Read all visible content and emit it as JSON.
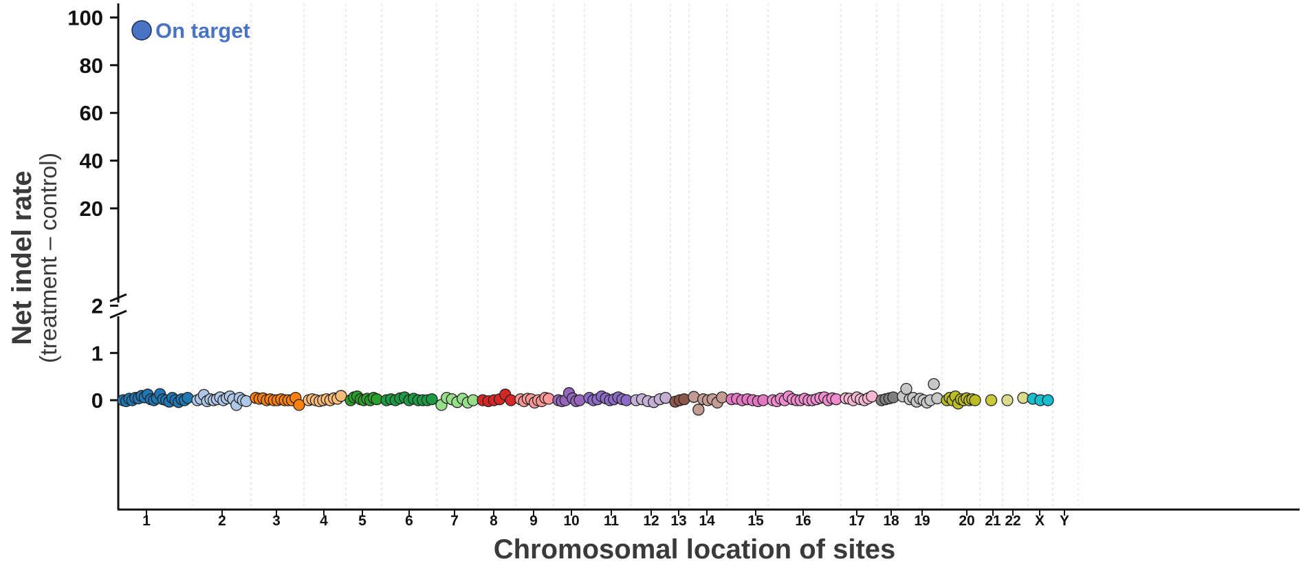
{
  "chart_data": {
    "type": "scatter",
    "xlabel": "Chromosomal location of sites",
    "ylabel": "Net indel rate",
    "ylabel_sub": "(treatment – control)",
    "y_upper": {
      "range": [
        5,
        105
      ],
      "ticks": [
        "20",
        "40",
        "60",
        "80",
        "100"
      ]
    },
    "y_lower": {
      "range": [
        -0.3,
        2.8
      ],
      "ticks": [
        "0",
        "1",
        "2"
      ]
    },
    "y_axis_break": true,
    "grid": "vertical dashed lines between chromosomes",
    "annotation": {
      "text": "On target",
      "value": 94.6,
      "chromosome": "1",
      "color": "#4a74c3"
    },
    "categories": [
      "1",
      "2",
      "3",
      "4",
      "5",
      "6",
      "7",
      "8",
      "9",
      "10",
      "11",
      "12",
      "13",
      "14",
      "15",
      "16",
      "17",
      "18",
      "19",
      "20",
      "21",
      "22",
      "X",
      "Y"
    ],
    "series": [
      {
        "chromosome": "1",
        "color": "#1f77b4",
        "values": [
          0.0,
          -0.02,
          0.03,
          0.0,
          0.05,
          0.04,
          0.09,
          0.06,
          0.12,
          0.02,
          0.0,
          0.04,
          0.13,
          0.02,
          0.0,
          -0.03,
          0.05,
          0.0,
          -0.04,
          0.02,
          0.0,
          0.05
        ]
      },
      {
        "chromosome": "2",
        "color": "#aec7e8",
        "values": [
          0.0,
          0.03,
          0.11,
          -0.02,
          0.02,
          0.0,
          0.02,
          0.06,
          0.0,
          0.04,
          0.08,
          0.02,
          -0.1,
          0.05,
          0.0,
          -0.02
        ]
      },
      {
        "chromosome": "3",
        "color": "#ff7f0e",
        "values": [
          0.05,
          0.03,
          0.04,
          0.0,
          0.02,
          0.0,
          0.0,
          0.02,
          0.0,
          0.0,
          0.0,
          0.05,
          -0.1
        ]
      },
      {
        "chromosome": "4",
        "color": "#ffbb78",
        "values": [
          0.0,
          0.02,
          0.0,
          -0.02,
          0.0,
          0.02,
          0.0,
          0.04,
          0.03,
          0.09
        ]
      },
      {
        "chromosome": "5",
        "color": "#2ca02c",
        "values": [
          0.0,
          0.06,
          0.08,
          0.02,
          0.0,
          0.03,
          0.0,
          0.05,
          0.02
        ]
      },
      {
        "chromosome": "6",
        "color": "#1e9a45",
        "values": [
          0.0,
          0.02,
          0.0,
          0.04,
          0.06,
          0.0,
          0.03,
          0.0,
          0.0,
          0.0,
          0.02
        ]
      },
      {
        "chromosome": "7",
        "color": "#98df8a",
        "values": [
          -0.1,
          0.05,
          0.02,
          -0.04,
          0.03,
          -0.05,
          0.0
        ]
      },
      {
        "chromosome": "8",
        "color": "#d62728",
        "values": [
          0.0,
          -0.02,
          0.0,
          0.02,
          0.12,
          0.0
        ]
      },
      {
        "chromosome": "9",
        "color": "#ff9896",
        "values": [
          0.02,
          -0.02,
          0.03,
          0.02,
          -0.05,
          0.0,
          -0.02,
          0.05,
          0.03
        ]
      },
      {
        "chromosome": "10",
        "color": "#9467bd",
        "values": [
          0.0,
          -0.02,
          0.0,
          0.15,
          0.04,
          -0.02,
          0.0
        ]
      },
      {
        "chromosome": "11",
        "color": "#8c6bc7",
        "values": [
          0.05,
          0.0,
          0.02,
          0.08,
          0.04,
          0.0,
          0.02,
          0.06,
          0.02,
          0.0
        ]
      },
      {
        "chromosome": "12",
        "color": "#c5b0d5",
        "values": [
          0.0,
          0.02,
          -0.02,
          -0.04,
          0.02,
          0.05
        ]
      },
      {
        "chromosome": "13",
        "color": "#8c564b",
        "values": [
          -0.03,
          0.0,
          0.02
        ]
      },
      {
        "chromosome": "14",
        "color": "#c49c94",
        "values": [
          0.07,
          -0.2,
          0.02,
          0.0,
          0.02,
          -0.05,
          0.06
        ]
      },
      {
        "chromosome": "15",
        "color": "#e377c2",
        "values": [
          0.02,
          0.03,
          0.0,
          0.02,
          0.0,
          -0.02,
          0.0
        ]
      },
      {
        "chromosome": "16",
        "color": "#f08bcf",
        "values": [
          0.0,
          -0.02,
          0.03,
          0.0,
          0.08,
          0.02,
          0.0,
          0.0,
          0.03,
          0.0,
          0.0,
          0.02,
          0.05,
          0.06,
          0.0,
          0.04,
          0.02
        ]
      },
      {
        "chromosome": "17",
        "color": "#f7b6d2",
        "values": [
          0.04,
          0.03,
          0.0,
          0.06,
          0.02,
          0.0,
          0.04,
          0.08
        ]
      },
      {
        "chromosome": "18",
        "color": "#7f7f7f",
        "values": [
          0.0,
          0.02,
          0.04,
          0.06
        ]
      },
      {
        "chromosome": "19",
        "color": "#c7c7c7",
        "values": [
          0.08,
          0.24,
          0.02,
          0.05,
          -0.03,
          0.03,
          0.0,
          -0.05,
          0.0,
          0.34,
          0.04
        ]
      },
      {
        "chromosome": "20",
        "color": "#bcbd22",
        "values": [
          0.0,
          0.05,
          0.0,
          0.08,
          -0.07,
          0.02,
          0.0,
          0.04,
          0.0,
          0.02,
          0.0
        ]
      },
      {
        "chromosome": "21",
        "color": "#c9c93b",
        "values": [
          0.0
        ]
      },
      {
        "chromosome": "22",
        "color": "#dbdb8d",
        "values": [
          0.0,
          0.05
        ]
      },
      {
        "chromosome": "X",
        "color": "#17becf",
        "values": [
          0.03,
          0.0,
          0.0
        ]
      },
      {
        "chromosome": "Y",
        "color": "#9edae5",
        "values": []
      }
    ]
  }
}
